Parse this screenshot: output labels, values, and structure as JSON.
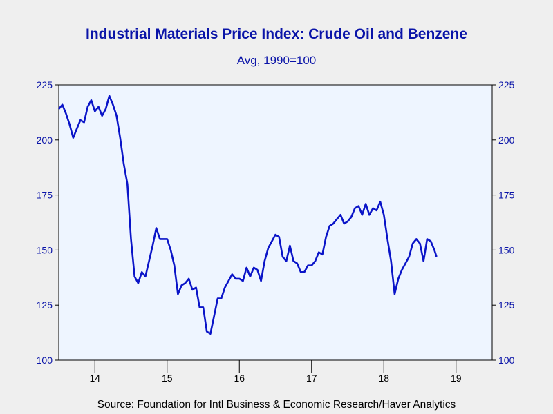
{
  "chart_data": {
    "type": "line",
    "title": "Industrial Materials Price Index: Crude Oil and Benzene",
    "subtitle": "Avg, 1990=100",
    "source": "Source:  Foundation for Intl Business & Economic Research/Haver Analytics",
    "xlabel": "",
    "ylabel": "",
    "ylim": [
      100,
      225
    ],
    "yticks": [
      "100",
      "125",
      "150",
      "175",
      "200",
      "225"
    ],
    "xlim": [
      2013.5,
      2019.5
    ],
    "xticks": [
      "14",
      "15",
      "16",
      "17",
      "18",
      "19"
    ],
    "grid": false,
    "line_color": "#0a14c8",
    "series": [
      {
        "points": [
          [
            2013.5,
            214
          ],
          [
            2013.55,
            216
          ],
          [
            2013.6,
            212
          ],
          [
            2013.65,
            207
          ],
          [
            2013.7,
            201
          ],
          [
            2013.75,
            205
          ],
          [
            2013.8,
            209
          ],
          [
            2013.85,
            208
          ],
          [
            2013.9,
            215
          ],
          [
            2013.95,
            218
          ],
          [
            2014.0,
            213
          ],
          [
            2014.05,
            215
          ],
          [
            2014.1,
            211
          ],
          [
            2014.15,
            214
          ],
          [
            2014.2,
            220
          ],
          [
            2014.25,
            216
          ],
          [
            2014.3,
            211
          ],
          [
            2014.35,
            201
          ],
          [
            2014.4,
            189
          ],
          [
            2014.45,
            180
          ],
          [
            2014.5,
            155
          ],
          [
            2014.55,
            138
          ],
          [
            2014.6,
            135
          ],
          [
            2014.65,
            140
          ],
          [
            2014.7,
            138
          ],
          [
            2014.75,
            145
          ],
          [
            2014.8,
            152
          ],
          [
            2014.85,
            160
          ],
          [
            2014.9,
            155
          ],
          [
            2014.95,
            155
          ],
          [
            2015.0,
            155
          ],
          [
            2015.05,
            150
          ],
          [
            2015.1,
            143
          ],
          [
            2015.15,
            130
          ],
          [
            2015.2,
            134
          ],
          [
            2015.25,
            135
          ],
          [
            2015.3,
            137
          ],
          [
            2015.35,
            132
          ],
          [
            2015.4,
            133
          ],
          [
            2015.45,
            124
          ],
          [
            2015.5,
            124
          ],
          [
            2015.55,
            113
          ],
          [
            2015.6,
            112
          ],
          [
            2015.65,
            120
          ],
          [
            2015.7,
            128
          ],
          [
            2015.75,
            128
          ],
          [
            2015.8,
            133
          ],
          [
            2015.85,
            136
          ],
          [
            2015.9,
            139
          ],
          [
            2015.95,
            137
          ],
          [
            2016.0,
            137
          ],
          [
            2016.05,
            136
          ],
          [
            2016.1,
            142
          ],
          [
            2016.15,
            138
          ],
          [
            2016.2,
            142
          ],
          [
            2016.25,
            141
          ],
          [
            2016.3,
            136
          ],
          [
            2016.35,
            145
          ],
          [
            2016.4,
            151
          ],
          [
            2016.45,
            154
          ],
          [
            2016.5,
            157
          ],
          [
            2016.55,
            156
          ],
          [
            2016.6,
            147
          ],
          [
            2016.65,
            145
          ],
          [
            2016.7,
            152
          ],
          [
            2016.75,
            145
          ],
          [
            2016.8,
            144
          ],
          [
            2016.85,
            140
          ],
          [
            2016.9,
            140
          ],
          [
            2016.95,
            143
          ],
          [
            2017.0,
            143
          ],
          [
            2017.05,
            145
          ],
          [
            2017.1,
            149
          ],
          [
            2017.15,
            148
          ],
          [
            2017.2,
            156
          ],
          [
            2017.25,
            161
          ],
          [
            2017.3,
            162
          ],
          [
            2017.35,
            164
          ],
          [
            2017.4,
            166
          ],
          [
            2017.45,
            162
          ],
          [
            2017.5,
            163
          ],
          [
            2017.55,
            165
          ],
          [
            2017.6,
            169
          ],
          [
            2017.65,
            170
          ],
          [
            2017.7,
            166
          ],
          [
            2017.75,
            171
          ],
          [
            2017.8,
            166
          ],
          [
            2017.85,
            169
          ],
          [
            2017.9,
            168
          ],
          [
            2017.95,
            172
          ],
          [
            2018.0,
            166
          ],
          [
            2018.05,
            155
          ],
          [
            2018.1,
            145
          ],
          [
            2018.15,
            130
          ],
          [
            2018.2,
            137
          ],
          [
            2018.25,
            141
          ],
          [
            2018.3,
            144
          ],
          [
            2018.35,
            147
          ],
          [
            2018.4,
            153
          ],
          [
            2018.45,
            155
          ],
          [
            2018.5,
            153
          ],
          [
            2018.55,
            145
          ],
          [
            2018.6,
            155
          ],
          [
            2018.65,
            154
          ],
          [
            2018.7,
            150
          ],
          [
            2018.73,
            147
          ]
        ]
      }
    ]
  }
}
